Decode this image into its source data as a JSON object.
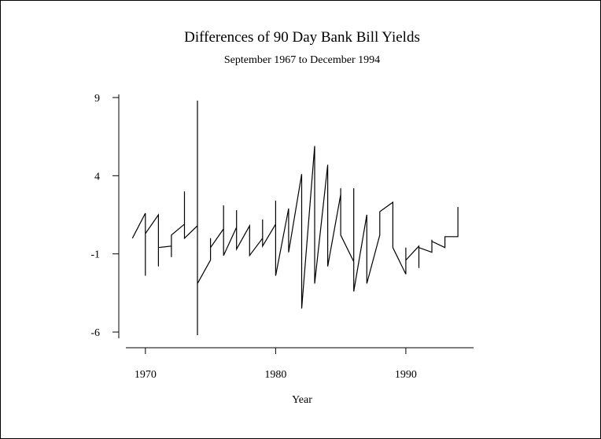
{
  "chart_data": {
    "type": "line",
    "title": "Differences of 90 Day Bank Bill Yields",
    "subtitle": "September 1967 to December 1994",
    "xlabel": "Year",
    "ylabel": "",
    "xlim": [
      1968.5,
      1995.2
    ],
    "ylim": [
      -6.4,
      9.2
    ],
    "x_ticks": [
      1970,
      1980,
      1990
    ],
    "y_ticks": [
      9,
      4,
      -1,
      -6
    ],
    "grid": false,
    "legend": "none",
    "color": "#000000",
    "series": [
      {
        "x": [
          1969.0,
          1970.0,
          1970.0,
          1970.0,
          1971.0,
          1971.0,
          1971.0,
          1972.0,
          1972.0,
          1972.0,
          1973.0,
          1973.0,
          1973.0,
          1974.0,
          1974.0,
          1974.0,
          1974.0,
          1975.0,
          1975.0,
          1975.0,
          1976.0,
          1976.0,
          1976.0,
          1977.0,
          1977.0,
          1977.0,
          1978.0,
          1978.0,
          1979.0,
          1979.0,
          1979.0,
          1980.0,
          1980.0,
          1980.0,
          1981.0,
          1981.0,
          1981.0,
          1982.0,
          1982.0,
          1983.0,
          1983.0,
          1984.0,
          1984.0,
          1984.0,
          1985.0,
          1985.0,
          1985.0,
          1986.0,
          1986.0,
          1986.0,
          1987.0,
          1987.0,
          1988.0,
          1988.0,
          1988.0,
          1989.0,
          1989.0,
          1990.0,
          1990.0,
          1990.0,
          1991.0,
          1991.0,
          1991.0,
          1992.0,
          1992.0,
          1992.0,
          1993.0,
          1993.0,
          1994.0,
          1994.0
        ],
        "y": [
          0.0,
          1.6,
          -2.4,
          0.3,
          1.5,
          -1.8,
          -0.6,
          -0.5,
          -1.2,
          0.2,
          0.9,
          3.0,
          0.0,
          0.8,
          -6.2,
          8.8,
          -2.9,
          -1.4,
          0.0,
          -0.6,
          0.6,
          2.1,
          -1.1,
          0.7,
          1.8,
          -0.7,
          0.8,
          -1.1,
          0.0,
          1.2,
          -0.5,
          0.9,
          2.4,
          -2.4,
          1.9,
          1.2,
          -0.9,
          4.1,
          -4.5,
          5.9,
          -2.9,
          4.7,
          2.2,
          -1.8,
          2.8,
          3.2,
          0.2,
          -1.5,
          3.2,
          -3.4,
          1.5,
          -2.9,
          0.2,
          1.1,
          1.7,
          2.3,
          -0.6,
          -2.3,
          -0.6,
          -1.4,
          -0.5,
          -1.9,
          -0.6,
          -0.9,
          -0.1,
          -0.2,
          -0.6,
          0.1,
          0.1,
          2.0
        ]
      }
    ]
  }
}
